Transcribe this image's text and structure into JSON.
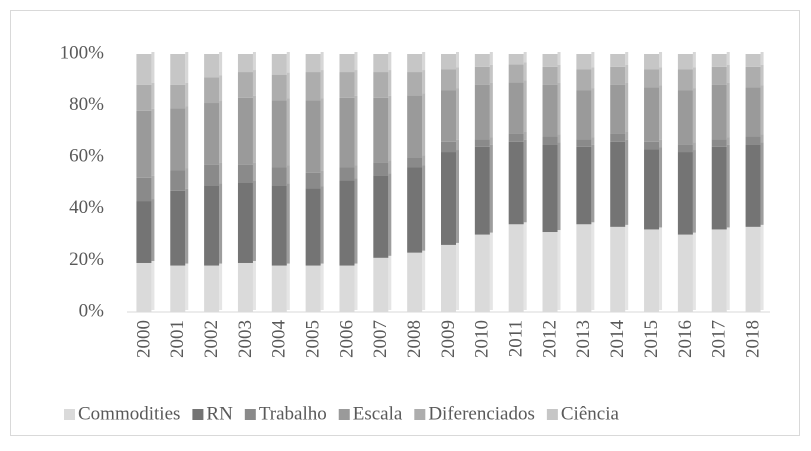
{
  "chart_data": {
    "type": "stacked_bar",
    "categories": [
      "2000",
      "2001",
      "2002",
      "2003",
      "2004",
      "2005",
      "2006",
      "2007",
      "2008",
      "2009",
      "2010",
      "2011",
      "2012",
      "2013",
      "2014",
      "2015",
      "2016",
      "2017",
      "2018"
    ],
    "series": [
      {
        "name": "Commodities",
        "color": "#dadada",
        "values": [
          19,
          18,
          18,
          19,
          18,
          18,
          18,
          21,
          23,
          26,
          30,
          34,
          31,
          34,
          33,
          32,
          30,
          32,
          33
        ]
      },
      {
        "name": "RN",
        "color": "#747474",
        "values": [
          24,
          29,
          31,
          31,
          31,
          30,
          33,
          32,
          33,
          36,
          34,
          32,
          34,
          30,
          33,
          31,
          32,
          32,
          32
        ]
      },
      {
        "name": "Trabalho",
        "color": "#8a8a8a",
        "values": [
          9,
          8,
          8,
          7,
          7,
          6,
          5,
          5,
          4,
          4,
          3,
          3,
          3,
          3,
          3,
          3,
          3,
          3,
          3
        ]
      },
      {
        "name": "Escala",
        "color": "#9a9a9a",
        "values": [
          26,
          24,
          24,
          26,
          26,
          28,
          27,
          25,
          24,
          20,
          21,
          20,
          20,
          19,
          19,
          21,
          21,
          21,
          19
        ]
      },
      {
        "name": "Diferenciados",
        "color": "#adadad",
        "values": [
          10,
          9,
          10,
          10,
          10,
          11,
          10,
          10,
          9,
          8,
          7,
          7,
          7,
          8,
          7,
          7,
          8,
          7,
          8
        ]
      },
      {
        "name": "Ciência",
        "color": "#c6c6c6",
        "values": [
          12,
          12,
          9,
          7,
          8,
          7,
          7,
          7,
          7,
          6,
          5,
          4,
          5,
          6,
          5,
          6,
          6,
          5,
          5
        ]
      }
    ],
    "ylim": [
      0,
      100
    ],
    "yticks": [
      {
        "value": 0,
        "label": "0%"
      },
      {
        "value": 20,
        "label": "20%"
      },
      {
        "value": 40,
        "label": "40%"
      },
      {
        "value": 60,
        "label": "60%"
      },
      {
        "value": 80,
        "label": "80%"
      },
      {
        "value": 100,
        "label": "100%"
      }
    ],
    "legend": "bottom"
  }
}
